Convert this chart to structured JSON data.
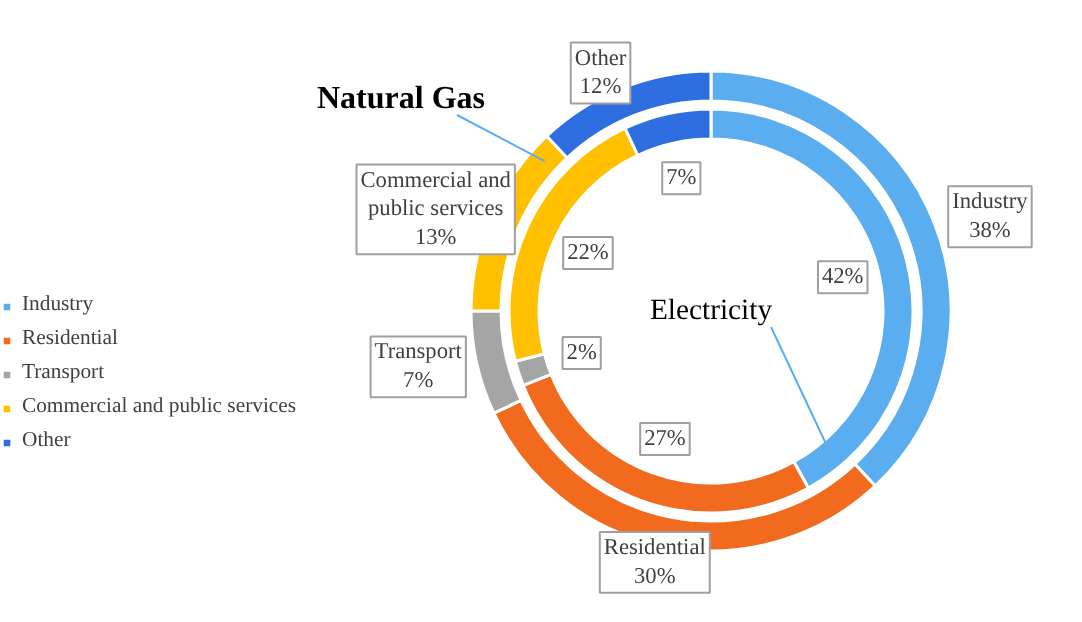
{
  "chart_data": {
    "type": "donut",
    "categories": [
      "Industry",
      "Residential",
      "Transport",
      "Commercial and public services",
      "Other"
    ],
    "colors": [
      "#5aaef0",
      "#f26a1e",
      "#a5a5a5",
      "#ffc000",
      "#2e6ee0"
    ],
    "series": [
      {
        "name": "Natural Gas",
        "values": [
          38,
          30,
          7,
          13,
          12
        ],
        "value_labels": [
          "38%",
          "30%",
          "7%",
          "13%",
          "12%"
        ]
      },
      {
        "name": "Electricity",
        "values": [
          42,
          27,
          2,
          22,
          7
        ],
        "value_labels": [
          "42%",
          "27%",
          "2%",
          "22%",
          "7%"
        ]
      }
    ],
    "data_labels": true,
    "legend": "left"
  }
}
